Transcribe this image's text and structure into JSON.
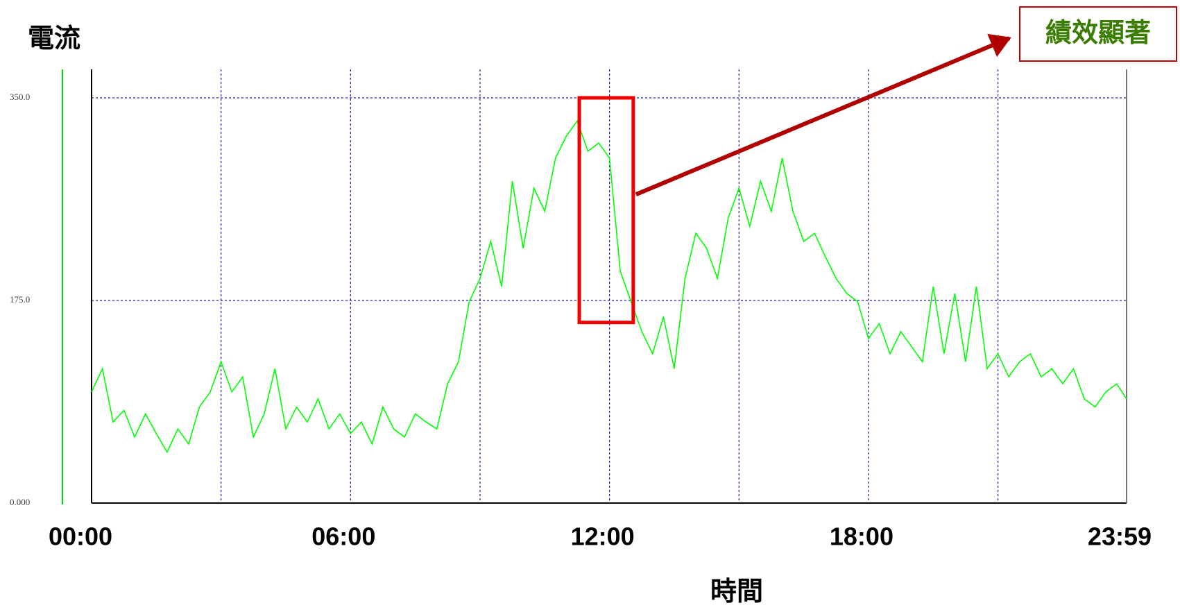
{
  "chart_data": {
    "type": "line",
    "y_label": "電流",
    "x_label": "時間",
    "x": [
      0,
      0.25,
      0.5,
      0.75,
      1,
      1.25,
      1.5,
      1.75,
      2,
      2.25,
      2.5,
      2.75,
      3,
      3.25,
      3.5,
      3.75,
      4,
      4.25,
      4.5,
      4.75,
      5,
      5.25,
      5.5,
      5.75,
      6,
      6.25,
      6.5,
      6.75,
      7,
      7.25,
      7.5,
      7.75,
      8,
      8.25,
      8.5,
      8.75,
      9,
      9.25,
      9.5,
      9.75,
      10,
      10.25,
      10.5,
      10.75,
      11,
      11.25,
      11.5,
      11.75,
      12,
      12.25,
      12.5,
      12.75,
      13,
      13.25,
      13.5,
      13.75,
      14,
      14.25,
      14.5,
      14.75,
      15,
      15.25,
      15.5,
      15.75,
      16,
      16.25,
      16.5,
      16.75,
      17,
      17.25,
      17.5,
      17.75,
      18,
      18.25,
      18.5,
      18.75,
      19,
      19.25,
      19.5,
      19.75,
      20,
      20.25,
      20.5,
      20.75,
      21,
      21.25,
      21.5,
      21.75,
      22,
      22.25,
      22.5,
      22.75,
      23,
      23.25,
      23.5,
      23.75,
      23.98
    ],
    "values": [
      96,
      116,
      70,
      80,
      57,
      77,
      60,
      44,
      64,
      51,
      83,
      96,
      122,
      96,
      109,
      57,
      77,
      116,
      64,
      83,
      70,
      90,
      64,
      77,
      60,
      70,
      51,
      83,
      64,
      57,
      77,
      70,
      64,
      103,
      122,
      174,
      194,
      226,
      187,
      278,
      220,
      272,
      252,
      298,
      317,
      330,
      304,
      311,
      298,
      200,
      174,
      148,
      129,
      161,
      116,
      194,
      233,
      220,
      194,
      246,
      272,
      239,
      278,
      252,
      298,
      252,
      226,
      233,
      213,
      194,
      181,
      174,
      142,
      155,
      129,
      148,
      135,
      122,
      187,
      129,
      181,
      122,
      187,
      116,
      129,
      109,
      122,
      129,
      109,
      116,
      103,
      116,
      90,
      83,
      96,
      103,
      90
    ],
    "color": "#00ff00",
    "xlim": [
      0,
      23.98
    ],
    "xticks": [
      {
        "value": 0,
        "label": "00:00"
      },
      {
        "value": 6,
        "label": "06:00"
      },
      {
        "value": 12,
        "label": "12:00"
      },
      {
        "value": 18,
        "label": "18:00"
      },
      {
        "value": 23.98,
        "label": "23:59"
      }
    ],
    "x_gridlines": [
      3,
      6,
      9,
      12,
      15,
      18,
      21
    ],
    "ylim": [
      0,
      350
    ],
    "yticks": [
      {
        "value": 0,
        "label": "0.000"
      },
      {
        "value": 175,
        "label": "175.0"
      },
      {
        "value": 350,
        "label": "350.0"
      }
    ],
    "grid": true,
    "annotation": {
      "text": "績效顯著",
      "x": [
        11.3,
        12.55
      ],
      "y": [
        156,
        350
      ]
    }
  }
}
